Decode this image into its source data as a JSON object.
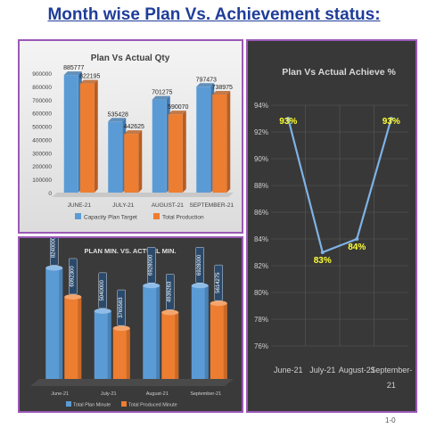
{
  "page_title": "Month wise Plan Vs. Achievement status:",
  "footer_code": "1-0",
  "colors": {
    "blue": "#5b9bd5",
    "orange": "#ed7d31",
    "line": "#7fb2e5",
    "label_yellow": "#ffff33",
    "title_blue": "#1f3d99"
  },
  "chart_data": [
    {
      "type": "bar",
      "title": "Plan Vs Actual Qty",
      "categories": [
        "JUNE-21",
        "JULY-21",
        "AUGUST-21",
        "SEPTEMBER-21"
      ],
      "series": [
        {
          "name": "Capacity Plan Target",
          "values": [
            885777,
            535428,
            701275,
            797473
          ],
          "labels": [
            "885777",
            "535428",
            "701275",
            "797473"
          ]
        },
        {
          "name": "Total Production",
          "values": [
            822195,
            442625,
            590070,
            738975
          ],
          "labels": [
            "822195",
            "442625",
            "590070",
            "738975"
          ]
        }
      ],
      "ylim": [
        0,
        900000
      ],
      "yticks": [
        0,
        100000,
        200000,
        300000,
        400000,
        500000,
        600000,
        700000,
        800000,
        900000
      ],
      "ytick_labels": [
        "0",
        "100000",
        "200000",
        "300000",
        "400000",
        "500000",
        "600000",
        "700000",
        "800000",
        "900000"
      ],
      "legend_position": "bottom",
      "grid": false
    },
    {
      "type": "bar",
      "title": "PLAN MIN. VS. ACTUAL MIN.",
      "categories": [
        "June-21",
        "July-21",
        "August-21",
        "September-21"
      ],
      "series": [
        {
          "name": "Total Plan Minute",
          "values": [
            8240000,
            5040000,
            6928000,
            6928000
          ],
          "labels": [
            "8240000",
            "5040000",
            "6928000",
            "6928000"
          ]
        },
        {
          "name": "Total Produced Minute",
          "values": [
            6092300,
            3765583,
            4939263,
            5614275
          ],
          "labels": [
            "6092300",
            "3765583",
            "4939263",
            "5614275"
          ]
        }
      ],
      "ylim": [
        0,
        9000000
      ],
      "legend_position": "bottom",
      "grid": false
    },
    {
      "type": "line",
      "title": "Plan Vs Actual Achieve %",
      "categories": [
        "June-21",
        "July-21",
        "August-21",
        "September-21"
      ],
      "x_labels": [
        [
          "June-21"
        ],
        [
          "July-21"
        ],
        [
          "August-21"
        ],
        [
          "September-",
          "21"
        ]
      ],
      "series": [
        {
          "values": [
            93,
            83,
            84,
            93
          ],
          "labels": [
            "93%",
            "83%",
            "84%",
            "93%"
          ]
        }
      ],
      "ylim": [
        76,
        94
      ],
      "yticks": [
        76,
        78,
        80,
        82,
        84,
        86,
        88,
        90,
        92,
        94
      ],
      "ytick_labels": [
        "76%",
        "78%",
        "80%",
        "82%",
        "84%",
        "86%",
        "88%",
        "90%",
        "92%",
        "94%"
      ],
      "grid": true
    }
  ]
}
